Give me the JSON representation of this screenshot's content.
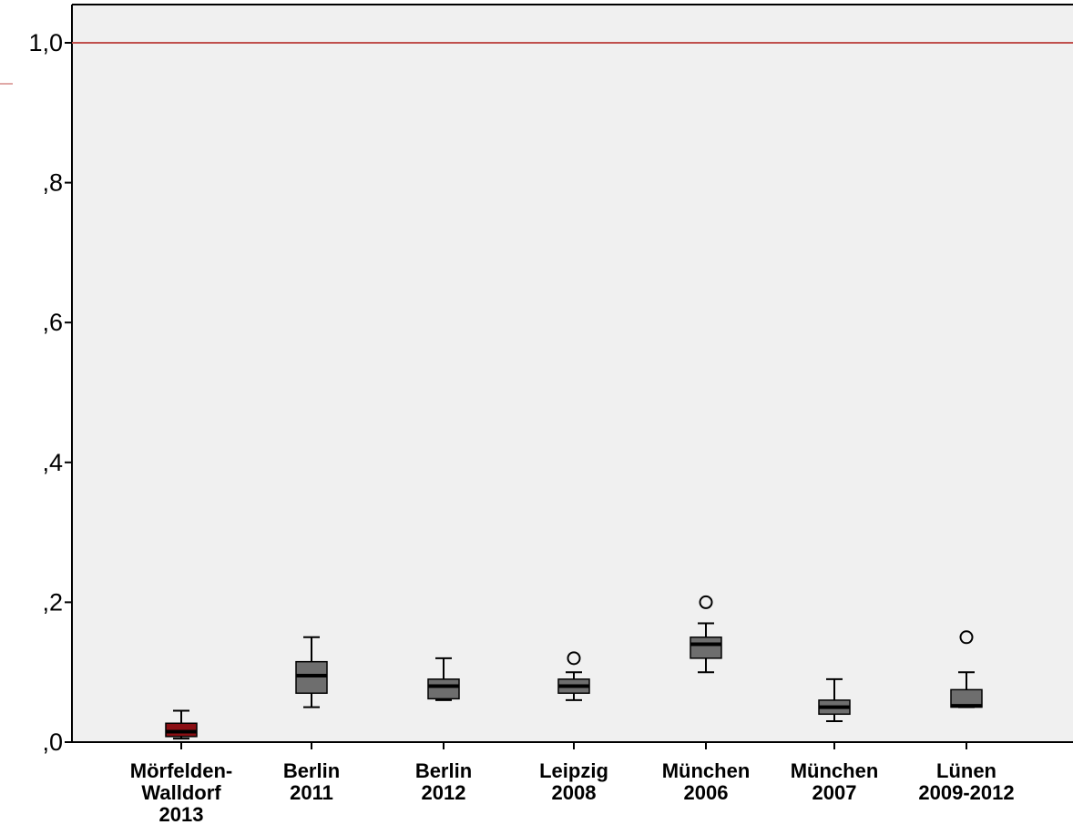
{
  "chart_data": {
    "type": "boxplot",
    "title": "",
    "xlabel": "",
    "ylabel": "",
    "ylim": [
      0,
      1.05
    ],
    "y_ticks": [
      {
        "value": 0.0,
        "label": ",0"
      },
      {
        "value": 0.2,
        "label": ",2"
      },
      {
        "value": 0.4,
        "label": ",4"
      },
      {
        "value": 0.6,
        "label": ",6"
      },
      {
        "value": 0.8,
        "label": ",8"
      },
      {
        "value": 1.0,
        "label": "1,0"
      }
    ],
    "reference_line": {
      "value": 1.0,
      "color": "#c0504d"
    },
    "plot_background": "#f0f0f0",
    "grid": false,
    "categories": [
      {
        "lines": [
          "Mörfelden-",
          "Walldorf",
          "2013"
        ],
        "min": 0.005,
        "q1": 0.008,
        "median": 0.015,
        "q3": 0.027,
        "max": 0.045,
        "outliers": [],
        "color": "#8b0f14"
      },
      {
        "lines": [
          "Berlin",
          "2011"
        ],
        "min": 0.05,
        "q1": 0.07,
        "median": 0.095,
        "q3": 0.115,
        "max": 0.15,
        "outliers": [],
        "color": "#6e6e6e"
      },
      {
        "lines": [
          "Berlin",
          "2012"
        ],
        "min": 0.06,
        "q1": 0.062,
        "median": 0.08,
        "q3": 0.09,
        "max": 0.12,
        "outliers": [],
        "color": "#6e6e6e"
      },
      {
        "lines": [
          "Leipzig",
          "2008"
        ],
        "min": 0.06,
        "q1": 0.07,
        "median": 0.08,
        "q3": 0.09,
        "max": 0.1,
        "outliers": [
          0.12
        ],
        "color": "#6e6e6e"
      },
      {
        "lines": [
          "München",
          "2006"
        ],
        "min": 0.1,
        "q1": 0.12,
        "median": 0.14,
        "q3": 0.15,
        "max": 0.17,
        "outliers": [
          0.2
        ],
        "color": "#6e6e6e"
      },
      {
        "lines": [
          "München",
          "2007"
        ],
        "min": 0.03,
        "q1": 0.04,
        "median": 0.05,
        "q3": 0.06,
        "max": 0.09,
        "outliers": [],
        "color": "#6e6e6e"
      },
      {
        "lines": [
          "Lünen",
          "2009-2012"
        ],
        "min": 0.05,
        "q1": 0.05,
        "median": 0.052,
        "q3": 0.075,
        "max": 0.1,
        "outliers": [
          0.15
        ],
        "color": "#6e6e6e"
      }
    ]
  }
}
